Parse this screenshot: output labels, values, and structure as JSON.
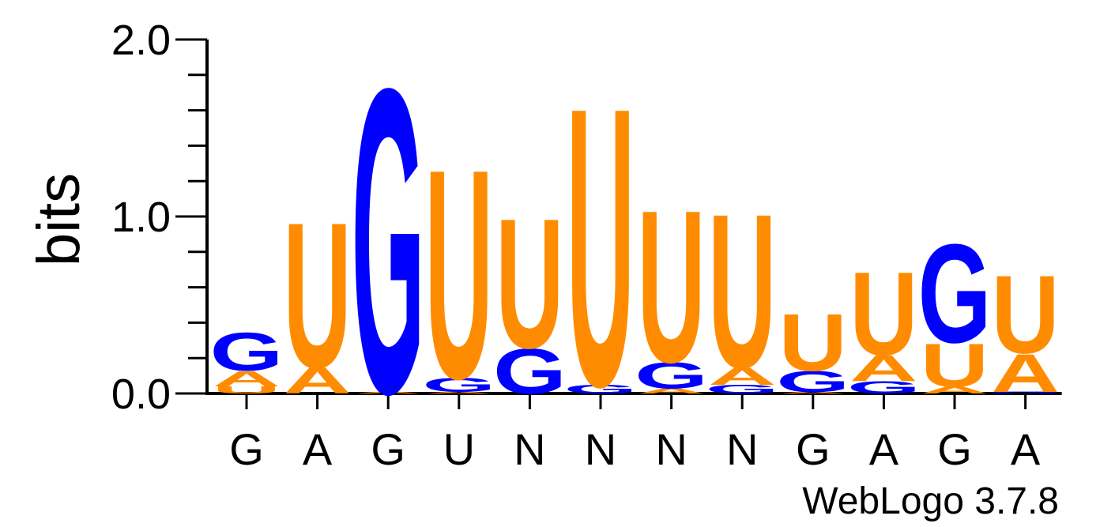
{
  "chart_data": {
    "type": "sequence-logo",
    "ylabel": "bits",
    "ylim": [
      0,
      2
    ],
    "yticks": [
      "0.0",
      "1.0",
      "2.0"
    ],
    "x_labels": [
      "G",
      "A",
      "G",
      "U",
      "N",
      "N",
      "N",
      "N",
      "G",
      "A",
      "G",
      "A"
    ],
    "colors": {
      "A": "#ff8c00",
      "U": "#ff8c00",
      "G": "#0000ff",
      "C": "#0000ff"
    },
    "positions": [
      {
        "stack": [
          {
            "letter": "U",
            "height": 0.04
          },
          {
            "letter": "A",
            "height": 0.09
          },
          {
            "letter": "G",
            "height": 0.22
          }
        ]
      },
      {
        "stack": [
          {
            "letter": "A",
            "height": 0.15
          },
          {
            "letter": "U",
            "height": 0.84
          }
        ]
      },
      {
        "stack": [
          {
            "letter": "A",
            "height": 0.01
          },
          {
            "letter": "G",
            "height": 1.76
          }
        ]
      },
      {
        "stack": [
          {
            "letter": "A",
            "height": 0.01
          },
          {
            "letter": "G",
            "height": 0.08
          },
          {
            "letter": "U",
            "height": 1.21
          }
        ]
      },
      {
        "stack": [
          {
            "letter": "G",
            "height": 0.26
          },
          {
            "letter": "U",
            "height": 0.75
          }
        ]
      },
      {
        "stack": [
          {
            "letter": "G",
            "height": 0.05
          },
          {
            "letter": "U",
            "height": 1.61
          }
        ]
      },
      {
        "stack": [
          {
            "letter": "A",
            "height": 0.03
          },
          {
            "letter": "G",
            "height": 0.15
          },
          {
            "letter": "U",
            "height": 0.88
          }
        ]
      },
      {
        "stack": [
          {
            "letter": "G",
            "height": 0.05
          },
          {
            "letter": "A",
            "height": 0.1
          },
          {
            "letter": "U",
            "height": 0.89
          }
        ]
      },
      {
        "stack": [
          {
            "letter": "A",
            "height": 0.01
          },
          {
            "letter": "G",
            "height": 0.12
          },
          {
            "letter": "U",
            "height": 0.33
          }
        ]
      },
      {
        "stack": [
          {
            "letter": "G",
            "height": 0.07
          },
          {
            "letter": "A",
            "height": 0.15
          },
          {
            "letter": "U",
            "height": 0.48
          }
        ]
      },
      {
        "stack": [
          {
            "letter": "A",
            "height": 0.04
          },
          {
            "letter": "U",
            "height": 0.25
          },
          {
            "letter": "G",
            "height": 0.57
          }
        ]
      },
      {
        "stack": [
          {
            "letter": "G",
            "height": 0.01
          },
          {
            "letter": "A",
            "height": 0.22
          },
          {
            "letter": "U",
            "height": 0.45
          }
        ]
      }
    ]
  },
  "footer": {
    "credit": "WebLogo 3.7.8"
  }
}
